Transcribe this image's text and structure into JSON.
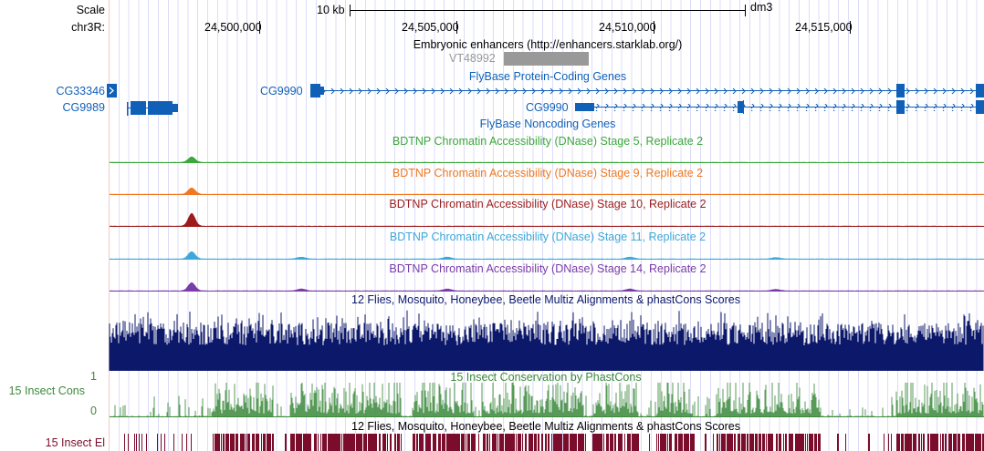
{
  "ruler": {
    "scale_label": "Scale",
    "scale_size": "10 kb",
    "assembly": "dm3",
    "chrom_label": "chr3R:",
    "ticks": [
      "24,500,000",
      "24,505,000",
      "24,510,000",
      "24,515,000"
    ]
  },
  "tracks": {
    "enhancers": {
      "title": "Embryonic enhancers (http://enhancers.starklab.org/)",
      "feature": "VT48992",
      "color": "#999999"
    },
    "protein_genes": {
      "title": "FlyBase Protein-Coding Genes",
      "color": "#1060b8",
      "genes": [
        {
          "name": "CG33346"
        },
        {
          "name": "CG9989"
        },
        {
          "name": "CG9990"
        },
        {
          "name": "CG9990"
        }
      ]
    },
    "noncoding": {
      "title": "FlyBase Noncoding Genes"
    },
    "dnase": [
      {
        "title": "BDTNP Chromatin Accessibility (DNase) Stage 5, Replicate 2",
        "color": "#3aa83a"
      },
      {
        "title": "BDTNP Chromatin Accessibility (DNase) Stage 9, Replicate 2",
        "color": "#f07820"
      },
      {
        "title": "BDTNP Chromatin Accessibility (DNase) Stage 10, Replicate 2",
        "color": "#9c1c1c"
      },
      {
        "title": "BDTNP Chromatin Accessibility (DNase) Stage 11, Replicate 2",
        "color": "#3ea8d8"
      },
      {
        "title": "BDTNP Chromatin Accessibility (DNase) Stage 14, Replicate 2",
        "color": "#7a3ca8"
      }
    ],
    "multiz": {
      "title": "12 Flies, Mosquito, Honeybee, Beetle Multiz Alignments & phastCons Scores",
      "color": "#0c186a"
    },
    "cons": {
      "title": "15 Insect Conservation by PhastCons",
      "side_label": "15 Insect Cons",
      "y_max": "1",
      "y_min": "0",
      "color": "#3c8a3c"
    },
    "elements": {
      "title": "12 Flies, Mosquito, Honeybee, Beetle Multiz Alignments & phastCons Scores",
      "side_label": "15 Insect El",
      "color": "#7a0c2c"
    }
  }
}
